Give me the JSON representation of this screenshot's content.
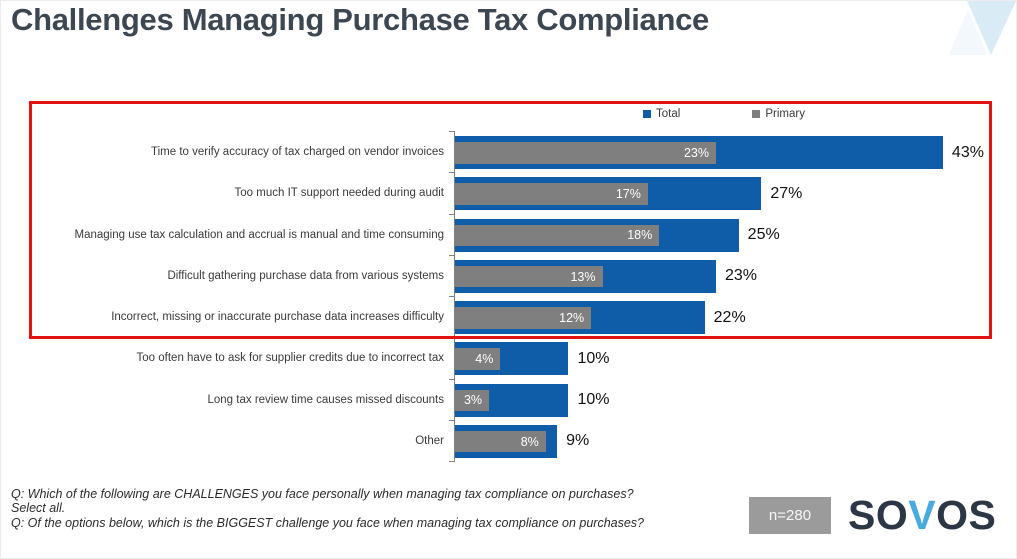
{
  "title": "Challenges Managing Purchase Tax Compliance",
  "legend": {
    "total": "Total",
    "primary": "Primary"
  },
  "colors": {
    "total_bar": "#0f5ca8",
    "primary_bar": "#7f7f7f",
    "highlight_box": "#e31212",
    "title_text": "#3d4752",
    "badge_bg": "#9b9b9b",
    "logo_dark": "#2d3644",
    "logo_blue": "#48abdf"
  },
  "chart_data": {
    "type": "bar",
    "orientation": "horizontal",
    "categories": [
      "Time to verify accuracy of tax charged on vendor invoices",
      "Too much IT support needed during audit",
      "Managing use tax calculation and accrual is manual and time consuming",
      "Difficult gathering purchase data from various systems",
      "Incorrect, missing or inaccurate purchase data increases difficulty",
      "Too often have to ask for supplier credits due to incorrect tax",
      "Long tax review time causes missed discounts",
      "Other"
    ],
    "series": [
      {
        "name": "Total",
        "values": [
          43,
          27,
          25,
          23,
          22,
          10,
          10,
          9
        ]
      },
      {
        "name": "Primary",
        "values": [
          23,
          17,
          18,
          13,
          12,
          4,
          3,
          8
        ]
      }
    ],
    "value_suffix": "%",
    "xlim": [
      0,
      47.5
    ],
    "highlighted_rows": [
      0,
      1,
      2,
      3,
      4
    ],
    "legend_position": "top",
    "grid": false
  },
  "footnotes": [
    "Q: Which of the following are CHALLENGES you face personally when managing tax compliance on purchases? Select all.",
    "Q: Of the options below, which is the BIGGEST challenge you face when managing tax compliance on purchases?"
  ],
  "badge": "n=280",
  "logo": {
    "pre": "SO",
    "v": "V",
    "post": "OS"
  }
}
